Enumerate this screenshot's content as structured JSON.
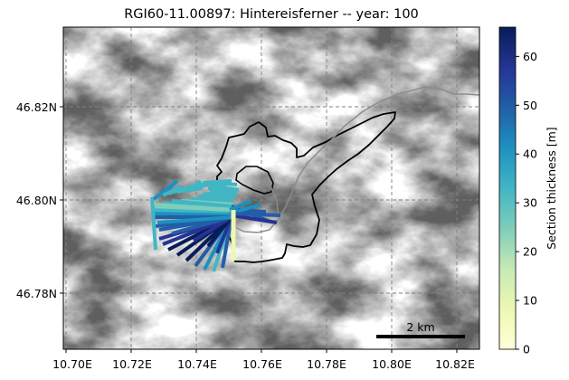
{
  "title": "RGI60-11.00897: Hintereisferner -- year: 100",
  "x_ticks": [
    "10.70E",
    "10.72E",
    "10.74E",
    "10.76E",
    "10.78E",
    "10.80E",
    "10.82E"
  ],
  "y_ticks": [
    "46.82N",
    "46.80N",
    "46.78N"
  ],
  "colorbar": {
    "label": "Section thickness [m]",
    "ticks": [
      "0",
      "10",
      "20",
      "30",
      "40",
      "50",
      "60"
    ],
    "min": 0,
    "max": 66
  },
  "scalebar": {
    "label": "2 km"
  },
  "colors": {
    "grid": "#7f7f7f",
    "outline": "#000000",
    "flowline": "#8c8c8c",
    "cmap": [
      "#ffffd9",
      "#edf8b1",
      "#c7e9b4",
      "#7fcdbb",
      "#41b6c4",
      "#1d91c0",
      "#225ea8",
      "#253494",
      "#081d58"
    ]
  }
}
